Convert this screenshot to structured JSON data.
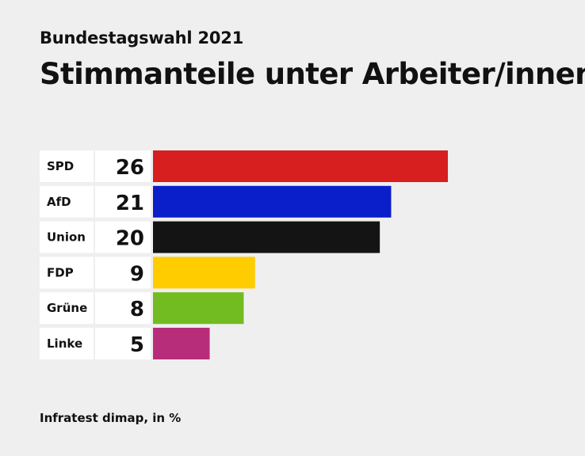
{
  "chart_data": {
    "type": "bar",
    "orientation": "horizontal",
    "subtitle": "Bundestagswahl 2021",
    "title": "Stimmanteile unter Arbeiter/innen",
    "categories": [
      "SPD",
      "AfD",
      "Union",
      "FDP",
      "Grüne",
      "Linke"
    ],
    "values": [
      26,
      21,
      20,
      9,
      8,
      5
    ],
    "value_labels": [
      "26",
      "21",
      "20",
      "9",
      "8",
      "5"
    ],
    "colors": [
      "#d71f1f",
      "#0a1fc9",
      "#141414",
      "#ffcc00",
      "#72bb21",
      "#b82d7a"
    ],
    "xlim": [
      0,
      26
    ],
    "grid": false,
    "legend": "none",
    "source": "Infratest dimap, in %"
  }
}
